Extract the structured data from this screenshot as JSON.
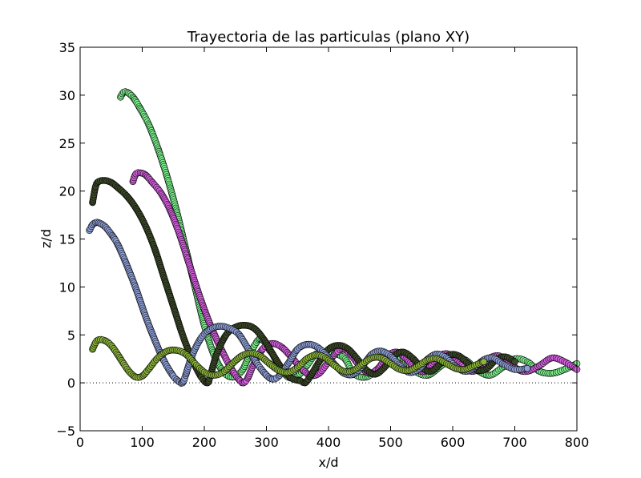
{
  "chart_data": {
    "type": "scatter",
    "title": "Trayectoria de las particulas (plano XY)",
    "xlabel": "x/d",
    "ylabel": "z/d",
    "xlim": [
      0,
      800
    ],
    "ylim": [
      -5,
      35
    ],
    "xticks": [
      "0",
      "100",
      "200",
      "300",
      "400",
      "500",
      "600",
      "700",
      "800"
    ],
    "yticks": [
      "−5",
      "0",
      "5",
      "10",
      "15",
      "20",
      "25",
      "30",
      "35"
    ],
    "grid": false,
    "reference_line": {
      "y": 0,
      "style": "dotted"
    },
    "series": [
      {
        "color": "#7cf08c",
        "x": [
          65,
          70,
          76,
          85,
          95,
          110,
          125,
          140,
          155,
          170,
          185,
          200,
          215,
          230,
          245,
          260,
          270,
          280,
          290,
          300,
          305,
          310,
          320,
          335,
          350,
          365,
          380,
          400,
          425,
          440,
          460,
          480,
          500,
          520,
          540,
          560,
          580,
          600,
          620,
          640,
          660,
          680,
          700,
          720,
          740,
          760,
          780,
          800
        ],
        "y": [
          29.8,
          30.3,
          30.3,
          29.8,
          28.8,
          27.0,
          24.5,
          21.5,
          18.0,
          14.0,
          10.0,
          6.0,
          3.0,
          1.2,
          0.6,
          1.2,
          2.5,
          3.8,
          4.6,
          4.0,
          3.4,
          3.0,
          1.8,
          0.6,
          0.7,
          1.8,
          3.0,
          3.2,
          2.6,
          1.0,
          0.6,
          1.5,
          2.8,
          2.5,
          1.2,
          0.8,
          1.7,
          2.6,
          2.4,
          1.3,
          0.8,
          1.6,
          2.5,
          2.2,
          1.2,
          1.0,
          1.4,
          2.0
        ]
      },
      {
        "color": "#d65fe0",
        "x": [
          85,
          90,
          97,
          105,
          115,
          130,
          145,
          160,
          175,
          190,
          205,
          220,
          235,
          248,
          258,
          263,
          270,
          280,
          295,
          310,
          325,
          340,
          355,
          370,
          385,
          400,
          415,
          425,
          435,
          450,
          465,
          480,
          495,
          510,
          525,
          540,
          555,
          570,
          585,
          600,
          615,
          630,
          645,
          660,
          675,
          690,
          705,
          720,
          740,
          760,
          780,
          800
        ],
        "y": [
          21.0,
          21.8,
          21.9,
          21.7,
          21.0,
          19.8,
          18.0,
          15.5,
          12.5,
          9.5,
          6.8,
          4.5,
          2.5,
          1.0,
          0.2,
          0.0,
          0.5,
          2.0,
          3.6,
          4.1,
          3.7,
          2.7,
          1.6,
          0.8,
          1.0,
          2.2,
          3.3,
          3.5,
          3.0,
          1.8,
          1.0,
          1.5,
          2.8,
          3.2,
          2.5,
          1.5,
          1.2,
          2.2,
          3.0,
          2.8,
          1.8,
          1.2,
          1.6,
          2.6,
          2.8,
          2.2,
          1.4,
          1.2,
          1.8,
          2.6,
          2.2,
          1.4
        ]
      },
      {
        "color": "#3d4a2a",
        "x": [
          20,
          25,
          30,
          40,
          50,
          60,
          75,
          90,
          105,
          120,
          135,
          150,
          165,
          180,
          195,
          205,
          210,
          220,
          235,
          250,
          265,
          280,
          295,
          310,
          325,
          340,
          355,
          362,
          370,
          385,
          400,
          415,
          430,
          445,
          460,
          475,
          490,
          505,
          520,
          535,
          550,
          565,
          580,
          595,
          610,
          625,
          640,
          655,
          670,
          685,
          700
        ],
        "y": [
          18.8,
          20.5,
          21.0,
          21.1,
          20.9,
          20.4,
          19.5,
          18.2,
          16.4,
          14.0,
          11.0,
          8.0,
          5.0,
          2.5,
          0.6,
          0.0,
          0.8,
          3.0,
          5.0,
          5.8,
          6.0,
          5.7,
          4.6,
          3.0,
          1.5,
          0.5,
          0.2,
          0.0,
          0.6,
          2.2,
          3.5,
          3.9,
          3.6,
          2.6,
          1.4,
          0.9,
          1.6,
          2.8,
          3.2,
          2.6,
          1.6,
          1.2,
          2.0,
          2.9,
          2.8,
          2.0,
          1.3,
          1.5,
          2.4,
          2.7,
          2.2
        ]
      },
      {
        "color": "#8fa0d8",
        "x": [
          15,
          20,
          25,
          30,
          40,
          50,
          60,
          75,
          90,
          105,
          120,
          135,
          150,
          160,
          165,
          170,
          180,
          195,
          210,
          225,
          240,
          255,
          270,
          285,
          300,
          310,
          320,
          335,
          350,
          365,
          380,
          395,
          410,
          425,
          440,
          455,
          470,
          485,
          500,
          515,
          530,
          545,
          560,
          575,
          590,
          605,
          620,
          635,
          650,
          665,
          680,
          700,
          720
        ],
        "y": [
          15.9,
          16.5,
          16.7,
          16.7,
          16.3,
          15.5,
          14.5,
          12.3,
          9.8,
          7.0,
          4.5,
          2.3,
          0.7,
          0.1,
          0.0,
          0.8,
          2.8,
          4.7,
          5.6,
          5.9,
          5.7,
          5.1,
          3.6,
          2.0,
          0.8,
          0.4,
          0.7,
          2.0,
          3.5,
          4.0,
          3.8,
          3.0,
          1.9,
          1.0,
          0.9,
          1.8,
          3.0,
          3.3,
          2.8,
          1.8,
          1.1,
          1.4,
          2.5,
          3.0,
          2.6,
          1.7,
          1.2,
          1.6,
          2.4,
          2.6,
          2.0,
          1.4,
          1.5
        ]
      },
      {
        "color": "#8cb53c",
        "x": [
          20,
          25,
          30,
          40,
          50,
          60,
          70,
          80,
          90,
          100,
          110,
          125,
          140,
          155,
          170,
          185,
          200,
          215,
          230,
          245,
          260,
          275,
          290,
          305,
          320,
          335,
          350,
          365,
          380,
          395,
          410,
          425,
          440,
          455,
          470,
          485,
          500,
          515,
          530,
          545,
          560,
          575,
          590,
          605,
          620,
          635,
          650
        ],
        "y": [
          3.5,
          4.2,
          4.5,
          4.4,
          3.9,
          3.0,
          2.0,
          1.1,
          0.6,
          0.7,
          1.4,
          2.6,
          3.3,
          3.4,
          3.0,
          2.0,
          1.1,
          0.8,
          1.1,
          2.0,
          2.8,
          3.1,
          2.8,
          2.0,
          1.3,
          1.1,
          1.6,
          2.5,
          2.9,
          2.6,
          1.8,
          1.2,
          1.3,
          2.0,
          2.6,
          2.6,
          2.0,
          1.4,
          1.3,
          1.8,
          2.4,
          2.5,
          2.0,
          1.5,
          1.4,
          1.8,
          2.2
        ]
      }
    ]
  }
}
